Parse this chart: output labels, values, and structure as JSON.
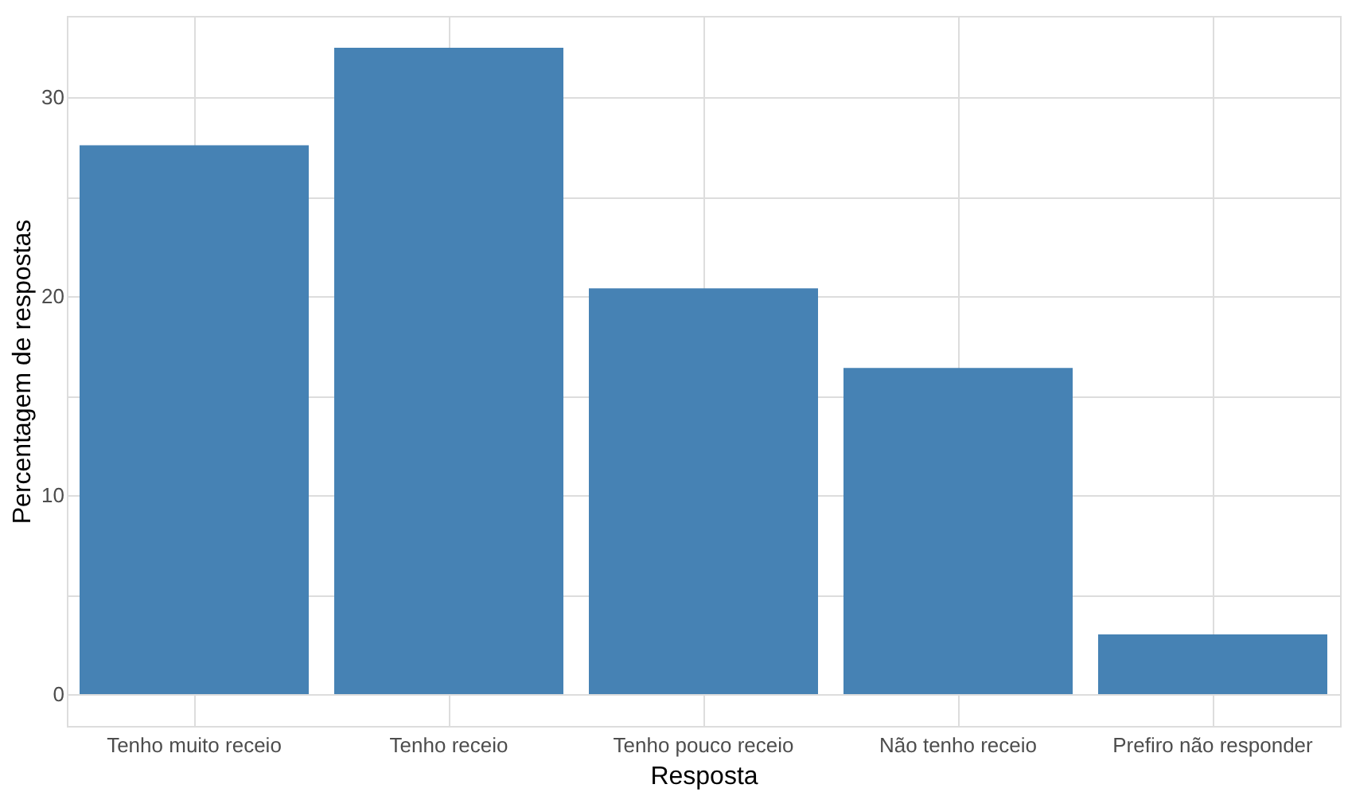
{
  "chart_data": {
    "type": "bar",
    "categories": [
      "Tenho muito receio",
      "Tenho receio",
      "Tenho pouco receio",
      "Não tenho receio",
      "Prefiro não responder"
    ],
    "values": [
      27.6,
      32.5,
      20.4,
      16.4,
      3.0
    ],
    "color": "#4682b4",
    "xlabel": "Resposta",
    "ylabel": "Percentagem de respostas",
    "ylim": [
      -1.6,
      34.1
    ],
    "yticks": [
      0,
      {
        "value": 5,
        "label": null
      },
      10,
      {
        "value": 15,
        "label": null
      },
      20,
      {
        "value": 25,
        "label": null
      },
      30
    ],
    "grid": true
  }
}
